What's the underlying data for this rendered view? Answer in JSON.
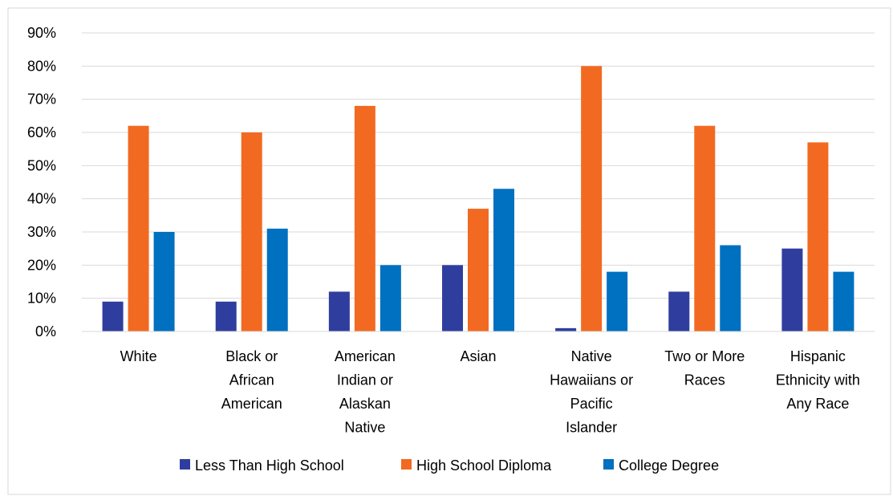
{
  "chart_data": {
    "type": "bar",
    "title": "",
    "xlabel": "",
    "ylabel": "",
    "ylim": [
      0,
      90
    ],
    "ytick_values": [
      0,
      10,
      20,
      30,
      40,
      50,
      60,
      70,
      80,
      90
    ],
    "ytick_labels": [
      "0%",
      "10%",
      "20%",
      "30%",
      "40%",
      "50%",
      "60%",
      "70%",
      "80%",
      "90%"
    ],
    "grid": true,
    "legend_position": "bottom",
    "categories": [
      "White",
      "Black or African American",
      "American Indian or Alaskan Native",
      "Asian",
      "Native Hawaiians or Pacific Islander",
      "Two or More Races",
      "Hispanic Ethnicity with Any Race"
    ],
    "category_label_lines": [
      [
        "White"
      ],
      [
        "Black or",
        "African",
        "American"
      ],
      [
        "American",
        "Indian or",
        "Alaskan",
        "Native"
      ],
      [
        "Asian"
      ],
      [
        "Native",
        "Hawaiians or",
        "Pacific",
        "Islander"
      ],
      [
        "Two or More",
        "Races"
      ],
      [
        "Hispanic",
        "Ethnicity with",
        "Any Race"
      ]
    ],
    "series": [
      {
        "name": "Less Than High School",
        "color": "#2f3e9e",
        "values": [
          9,
          9,
          12,
          20,
          1,
          12,
          25
        ]
      },
      {
        "name": "High School Diploma",
        "color": "#f26a21",
        "values": [
          62,
          60,
          68,
          37,
          80,
          62,
          57
        ]
      },
      {
        "name": "College Degree",
        "color": "#0070c0",
        "values": [
          30,
          31,
          20,
          43,
          18,
          26,
          18
        ]
      }
    ],
    "colors": {
      "grid": "#d9d9d9",
      "text": "#000000",
      "frame": "#d9d9d9",
      "title_accent": "#f26a21"
    }
  }
}
